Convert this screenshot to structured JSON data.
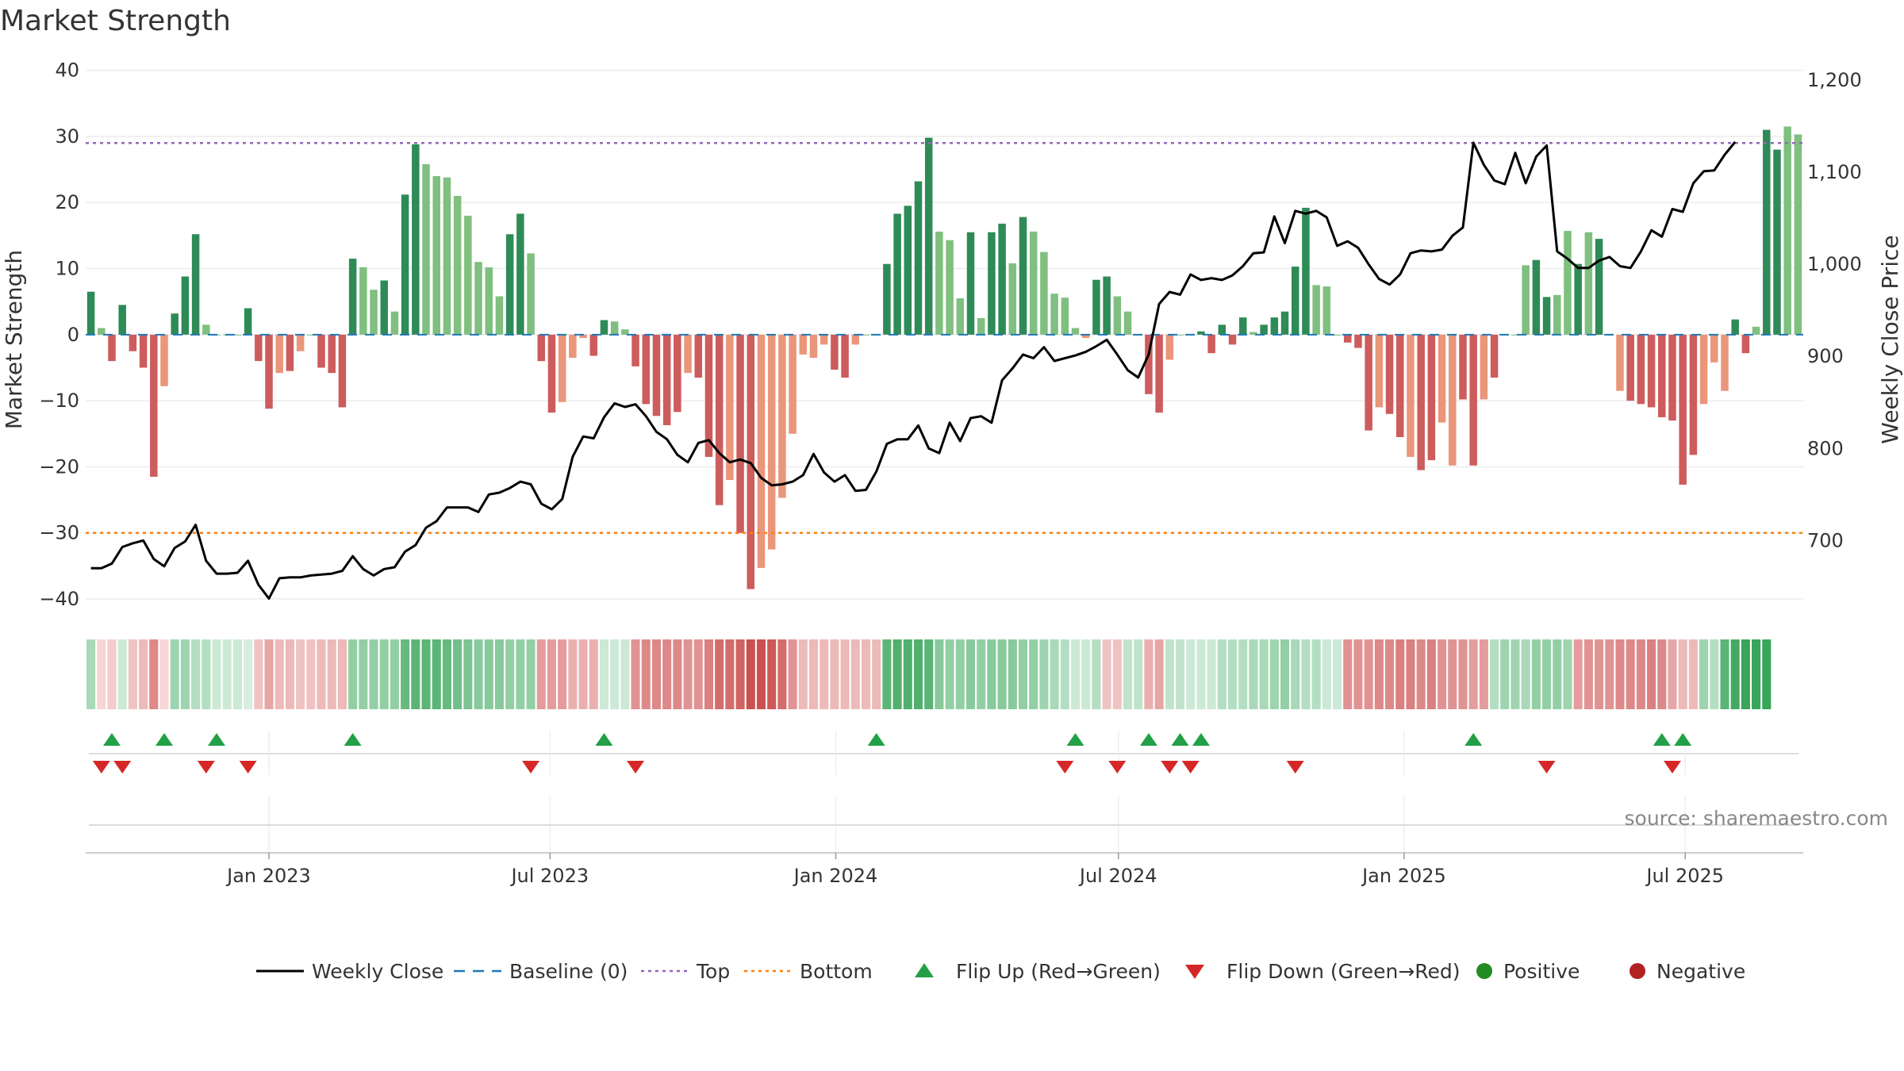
{
  "chart_data": {
    "type": "bar",
    "title": "Market Strength",
    "ylabel": "Market Strength",
    "y2label": "Weekly Close Price",
    "ylim": [
      -43,
      42
    ],
    "y2lim": [
      615,
      1225
    ],
    "yticks": [
      "40",
      "30",
      "20",
      "10",
      "0",
      "−10",
      "−20",
      "−30",
      "−40"
    ],
    "y2ticks": [
      "1,200",
      "1,100",
      "1,000",
      "900",
      "800",
      "700"
    ],
    "x_start": "2022-09-05",
    "x_end": "2025-09-15",
    "x_tick_labels": [
      "Jan 2023",
      "Jul 2023",
      "Jan 2024",
      "Jul 2024",
      "Jan 2025",
      "Jul 2025"
    ],
    "x_tick_dates": [
      "2023-01-01",
      "2023-07-01",
      "2024-01-01",
      "2024-07-01",
      "2025-01-01",
      "2025-07-01"
    ],
    "top_level": 29,
    "bottom_level": -30,
    "source_text": "source: sharemaestro.com",
    "colors": {
      "strong_pos": "#2e8b57",
      "weak_pos": "#7fbf7f",
      "strong_neg": "#cd5c5c",
      "weak_neg": "#e9967a",
      "close_line": "#000000",
      "baseline": "#1f77b4",
      "top": "#9467bd",
      "bottom": "#ff7f0e",
      "flip_up": "#22a046",
      "flip_down": "#d62728",
      "positive": "#228b22",
      "negative": "#b22222"
    },
    "strength": [
      6.5,
      1,
      -4,
      4.5,
      -2.5,
      -5,
      -21.5,
      -7.8,
      3.2,
      8.8,
      15.2,
      1.5,
      0,
      0,
      0,
      4,
      -4,
      -11.2,
      -5.8,
      -5.5,
      -2.5,
      0,
      -5,
      -5.8,
      -11,
      11.5,
      10.2,
      6.8,
      8.2,
      3.5,
      21.2,
      28.8,
      25.8,
      24,
      23.8,
      21,
      18,
      11,
      10.2,
      5.8,
      15.2,
      18.3,
      12.3,
      -4,
      -11.8,
      -10.2,
      -3.5,
      -0.5,
      -3.2,
      2.2,
      2,
      0.8,
      -4.8,
      -10.5,
      -12.3,
      -13.7,
      -11.7,
      -5.8,
      -6.5,
      -18.5,
      -25.8,
      -22,
      -30,
      -38.5,
      -35.3,
      -32.5,
      -24.7,
      -15,
      -3,
      -3.5,
      -1.5,
      -5.3,
      -6.5,
      -1.5,
      0,
      0,
      10.7,
      18.3,
      19.5,
      23.2,
      29.8,
      15.6,
      14.3,
      5.5,
      15.5,
      2.5,
      15.5,
      16.8,
      10.8,
      17.8,
      15.6,
      12.5,
      6.2,
      5.6,
      1,
      -0.5,
      8.3,
      8.8,
      5.8,
      3.5,
      0,
      -9,
      -11.8,
      -3.8,
      0,
      0,
      0.5,
      -2.8,
      1.5,
      -1.5,
      2.6,
      0.4,
      1.5,
      2.6,
      3.5,
      10.3,
      19.2,
      7.5,
      7.3,
      0,
      -1.2,
      -2,
      -14.5,
      -11,
      -12,
      -15.5,
      -18.5,
      -20.5,
      -19,
      -13.3,
      -19.8,
      -9.8,
      -19.8,
      -9.8,
      -6.5,
      0,
      0,
      10.5,
      11.3,
      5.7,
      6,
      15.7,
      10.7,
      15.5,
      14.5,
      0,
      -8.5,
      -10,
      -10.5,
      -11,
      -12.5,
      -13,
      -22.7,
      -18.2,
      -10.5,
      -4.2,
      -8.5,
      2.3,
      -2.8,
      1.2,
      31,
      28,
      31.5,
      30.3
    ],
    "strength_class": [
      "s",
      "w",
      "s",
      "s",
      "s",
      "s",
      "s",
      "w",
      "s",
      "s",
      "s",
      "w",
      "n",
      "n",
      "n",
      "s",
      "s",
      "s",
      "w",
      "s",
      "w",
      "n",
      "s",
      "s",
      "s",
      "s",
      "w",
      "w",
      "s",
      "w",
      "s",
      "s",
      "w",
      "w",
      "w",
      "w",
      "w",
      "w",
      "w",
      "w",
      "s",
      "s",
      "w",
      "s",
      "s",
      "w",
      "w",
      "w",
      "s",
      "s",
      "w",
      "w",
      "s",
      "s",
      "s",
      "s",
      "s",
      "w",
      "s",
      "s",
      "s",
      "w",
      "s",
      "s",
      "w",
      "w",
      "w",
      "w",
      "w",
      "w",
      "w",
      "s",
      "s",
      "w",
      "n",
      "n",
      "s",
      "s",
      "s",
      "s",
      "s",
      "w",
      "w",
      "w",
      "s",
      "w",
      "s",
      "s",
      "w",
      "s",
      "w",
      "w",
      "w",
      "w",
      "w",
      "w",
      "s",
      "s",
      "w",
      "w",
      "n",
      "s",
      "s",
      "w",
      "n",
      "n",
      "s",
      "s",
      "s",
      "s",
      "s",
      "w",
      "s",
      "s",
      "s",
      "s",
      "s",
      "w",
      "w",
      "n",
      "s",
      "s",
      "s",
      "w",
      "s",
      "s",
      "w",
      "s",
      "s",
      "w",
      "w",
      "s",
      "s",
      "w",
      "s",
      "w",
      "n",
      "n",
      "s",
      "s",
      "w",
      "w",
      "s",
      "w",
      "s",
      "w",
      "n",
      "s",
      "s",
      "s",
      "s",
      "s",
      "s",
      "s",
      "w",
      "w",
      "w",
      "s",
      "s",
      "w",
      "s",
      "s",
      "w",
      "w",
      "w"
    ],
    "weekly_close": [
      670,
      670,
      675,
      693,
      697,
      700,
      680,
      672,
      692,
      699,
      717,
      678,
      664,
      664,
      665,
      678,
      652,
      637,
      659,
      660,
      660,
      662,
      663,
      664,
      667,
      683,
      669,
      662,
      669,
      671,
      688,
      695,
      714,
      721,
      736,
      736,
      736,
      731,
      750,
      752,
      757,
      764,
      761,
      740,
      734,
      745,
      791,
      813,
      811,
      834,
      849,
      845,
      848,
      835,
      818,
      810,
      793,
      785,
      806,
      809,
      795,
      785,
      788,
      784,
      768,
      760,
      761,
      764,
      771,
      794,
      774,
      764,
      771,
      754,
      755,
      775,
      805,
      810,
      810,
      825,
      800,
      795,
      828,
      808,
      833,
      835,
      828,
      874,
      887,
      902,
      898,
      910,
      895,
      898,
      901,
      905,
      911,
      918,
      902,
      885,
      877,
      902,
      957,
      970,
      967,
      989,
      983,
      985,
      983,
      988,
      998,
      1012,
      1013,
      1052,
      1023,
      1058,
      1055,
      1058,
      1051,
      1020,
      1025,
      1018,
      1000,
      984,
      978,
      989,
      1012,
      1015,
      1014,
      1016,
      1031,
      1040,
      1132,
      1108,
      1091,
      1087,
      1121,
      1088,
      1117,
      1129,
      1014,
      1006,
      996,
      996,
      1004,
      1008,
      998,
      996,
      1014,
      1037,
      1030,
      1060,
      1057,
      1088,
      1101,
      1102,
      1119,
      1133
    ],
    "flip_up_index": [
      2,
      7,
      12,
      25,
      49,
      75,
      94,
      101,
      104,
      106,
      132,
      150,
      152
    ],
    "flip_down_index": [
      1,
      3,
      11,
      15,
      42,
      52,
      93,
      98,
      103,
      105,
      115,
      139,
      151
    ],
    "heat_index": [
      0.35,
      -0.15,
      -0.2,
      0.2,
      -0.25,
      -0.3,
      -0.55,
      -0.15,
      0.4,
      0.4,
      0.3,
      0.3,
      0.2,
      0.2,
      0.2,
      0.15,
      -0.25,
      -0.4,
      -0.3,
      -0.3,
      -0.25,
      -0.25,
      -0.3,
      -0.3,
      -0.3,
      0.45,
      0.45,
      0.45,
      0.45,
      0.45,
      0.65,
      0.7,
      0.7,
      0.7,
      0.65,
      0.6,
      0.55,
      0.5,
      0.5,
      0.5,
      0.45,
      0.45,
      0.45,
      -0.45,
      -0.45,
      -0.45,
      -0.35,
      -0.35,
      -0.35,
      0.2,
      0.2,
      0.2,
      -0.5,
      -0.55,
      -0.55,
      -0.55,
      -0.55,
      -0.5,
      -0.5,
      -0.6,
      -0.7,
      -0.7,
      -0.75,
      -0.85,
      -0.85,
      -0.8,
      -0.7,
      -0.5,
      -0.3,
      -0.3,
      -0.3,
      -0.3,
      -0.3,
      -0.3,
      -0.3,
      -0.3,
      0.7,
      0.75,
      0.75,
      0.75,
      0.7,
      0.5,
      0.45,
      0.45,
      0.5,
      0.45,
      0.5,
      0.5,
      0.5,
      0.45,
      0.45,
      0.4,
      0.35,
      0.3,
      0.2,
      0.2,
      0.3,
      -0.25,
      -0.25,
      0.25,
      0.25,
      -0.35,
      -0.4,
      0.25,
      0.25,
      0.2,
      0.2,
      0.2,
      0.3,
      0.3,
      0.3,
      0.35,
      0.35,
      0.4,
      0.45,
      0.35,
      0.3,
      0.3,
      0.2,
      0.2,
      -0.5,
      -0.5,
      -0.5,
      -0.55,
      -0.55,
      -0.6,
      -0.6,
      -0.55,
      -0.6,
      -0.5,
      -0.5,
      -0.5,
      -0.45,
      -0.45,
      0.3,
      0.4,
      0.4,
      0.35,
      0.45,
      0.45,
      0.45,
      0.4,
      -0.45,
      -0.5,
      -0.5,
      -0.5,
      -0.55,
      -0.55,
      -0.55,
      -0.6,
      -0.55,
      -0.4,
      -0.3,
      -0.3,
      0.4,
      0.3,
      0.7,
      0.8,
      0.85,
      0.85,
      0.85
    ]
  },
  "legend": {
    "items": [
      {
        "label": "Weekly Close",
        "type": "line"
      },
      {
        "label": "Baseline (0)",
        "type": "dash"
      },
      {
        "label": "Top",
        "type": "dot-purple"
      },
      {
        "label": "Bottom",
        "type": "dot-orange"
      },
      {
        "label": "Flip Up (Red→Green)",
        "type": "tri-up"
      },
      {
        "label": "Flip Down (Green→Red)",
        "type": "tri-down"
      },
      {
        "label": "Positive",
        "type": "dot-green"
      },
      {
        "label": "Negative",
        "type": "dot-red"
      }
    ]
  }
}
